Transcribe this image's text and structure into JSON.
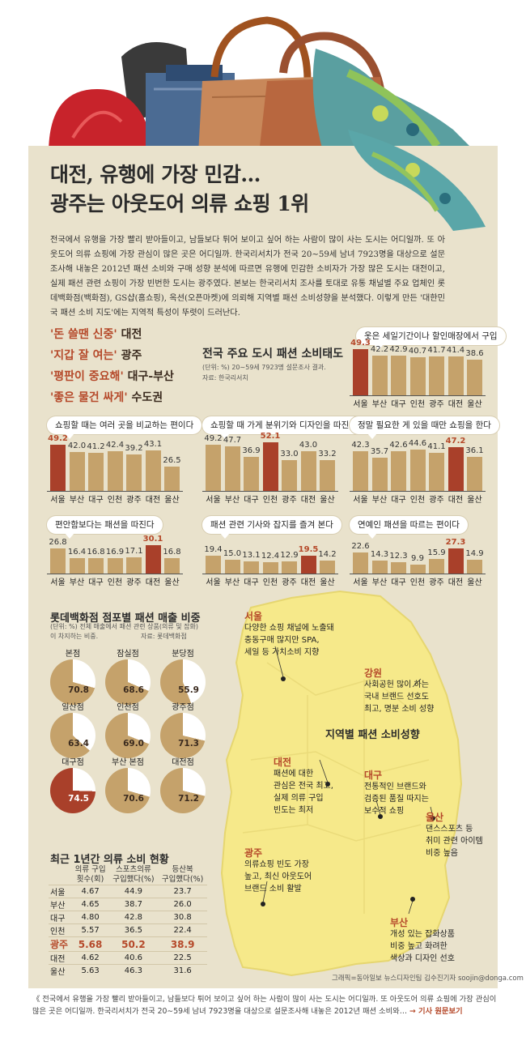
{
  "header": {
    "title1": "대전, 유행에 가장 민감…",
    "title2": "광주는 아웃도어 의류 쇼핑 1위"
  },
  "intro": "전국에서 유행을 가장 빨리 받아들이고, 남들보다 튀어 보이고 싶어 하는 사람이 많이 사는 도시는 어디일까. 또 아웃도어 의류 쇼핑에 가장 관심이 많은 곳은 어디일까. 한국리서치가 전국 20∼59세 남녀 7923명을 대상으로 설문조사해 내놓은 2012년 패션 소비와 구매 성향 분석에 따르면 유행에 민감한 소비자가 가장 많은 도시는 대전이고, 실제 패션 관련 쇼핑이 가장 빈번한 도시는 광주였다. 본보는 한국리서치 조사를 토대로 유통 채널별 주요 업체인 롯데백화점(백화점), GS샵(홈쇼핑), 옥션(오픈마켓)에 의뢰해 지역별 패션 소비성향을 분석했다. 이렇게 만든 '대한민국 패션 소비 지도'에는 지역적 특성이 뚜렷이 드러난다.",
  "keywords": [
    {
      "quote": "'돈 쓸땐 신중'",
      "city": "대전"
    },
    {
      "quote": "'지갑 잘 여는'",
      "city": "광주"
    },
    {
      "quote": "'평판이 중요해'",
      "city": "대구-부산"
    },
    {
      "quote": "'좋은 물건 싸게'",
      "city": "수도권"
    }
  ],
  "survey": {
    "title": "전국 주요 도시 패션 소비태도",
    "unit": "(단위: %)  20∼59세 7923명 설문조사 결과.",
    "source": "자료: 한국리서치"
  },
  "chart_data": [
    {
      "type": "bar",
      "title": "옷은 세일기간이나 할인매장에서 구입",
      "categories": [
        "서울",
        "부산",
        "대구",
        "인천",
        "광주",
        "대전",
        "울산"
      ],
      "values": [
        49.3,
        42.2,
        42.9,
        40.7,
        41.7,
        41.4,
        38.6
      ],
      "highlight": 0
    },
    {
      "type": "bar",
      "title": "쇼핑할 때는 여러 곳을 비교하는 편이다",
      "categories": [
        "서울",
        "부산",
        "대구",
        "인천",
        "광주",
        "대전",
        "울산"
      ],
      "values": [
        49.2,
        42.0,
        41.2,
        42.4,
        39.2,
        43.1,
        26.5
      ],
      "highlight": 0
    },
    {
      "type": "bar",
      "title": "쇼핑할 때 가게 분위기와 디자인을 따진다",
      "categories": [
        "서울",
        "부산",
        "대구",
        "인천",
        "광주",
        "대전",
        "울산"
      ],
      "values": [
        49.2,
        47.7,
        36.9,
        52.1,
        33.0,
        43.0,
        33.2
      ],
      "highlight": 3
    },
    {
      "type": "bar",
      "title": "정말 필요한 게 있을 때만 쇼핑을 한다",
      "categories": [
        "서울",
        "부산",
        "대구",
        "인천",
        "광주",
        "대전",
        "울산"
      ],
      "values": [
        42.3,
        35.7,
        42.6,
        44.6,
        41.1,
        47.2,
        36.1
      ],
      "highlight": 5
    },
    {
      "type": "bar",
      "title": "편안함보다는 패션을 따진다",
      "categories": [
        "서울",
        "부산",
        "대구",
        "인천",
        "광주",
        "대전",
        "울산"
      ],
      "values": [
        26.8,
        16.4,
        16.8,
        16.9,
        17.1,
        30.1,
        16.8
      ],
      "highlight": 5
    },
    {
      "type": "bar",
      "title": "패션 관련 기사와 잡지를 즐겨 본다",
      "categories": [
        "서울",
        "부산",
        "대구",
        "인천",
        "광주",
        "대전",
        "울산"
      ],
      "values": [
        19.4,
        15.0,
        13.1,
        12.4,
        12.9,
        19.5,
        14.2
      ],
      "highlight": 5
    },
    {
      "type": "bar",
      "title": "연예인 패션을 따르는 편이다",
      "categories": [
        "서울",
        "부산",
        "대구",
        "인천",
        "광주",
        "대전",
        "울산"
      ],
      "values": [
        22.6,
        14.3,
        12.3,
        9.9,
        15.9,
        27.3,
        14.9
      ],
      "highlight": 5
    },
    {
      "type": "pie",
      "title": "롯데백화점 점포별 패션 매출 비중",
      "categories": [
        "본점",
        "잠실점",
        "분당점",
        "일산점",
        "인천점",
        "광주점",
        "대구점",
        "부산 본점",
        "대전점"
      ],
      "values": [
        70.8,
        68.6,
        55.9,
        63.4,
        69.0,
        71.3,
        74.5,
        70.6,
        71.2
      ],
      "highlight": 6
    },
    {
      "type": "table",
      "title": "최근 1년간 의류 소비 현황",
      "columns": [
        "",
        "의류 구입 횟수(회)",
        "스포츠의류 구입했다(%)",
        "등산복 구입했다(%)"
      ],
      "rows": [
        [
          "서울",
          4.67,
          44.9,
          23.7
        ],
        [
          "부산",
          4.65,
          38.7,
          26.0
        ],
        [
          "대구",
          4.8,
          42.8,
          30.8
        ],
        [
          "인천",
          5.57,
          36.5,
          22.4
        ],
        [
          "광주",
          5.68,
          50.2,
          38.9
        ],
        [
          "대전",
          4.62,
          40.6,
          22.5
        ],
        [
          "울산",
          5.63,
          46.3,
          31.6
        ]
      ],
      "highlight": 4
    }
  ],
  "pies": {
    "unit": "(단위: %)  전체 매출에서 패션 관련 상품(의류 및 잡화)이 차지하는 비중.",
    "source": "자료: 롯데백화점",
    "labels": [
      "본점",
      "잠실점",
      "분당점",
      "일산점",
      "인천점",
      "광주점",
      "대구점",
      "부산 본점",
      "대전점"
    ],
    "values": [
      "70.8",
      "68.6",
      "55.9",
      "63.4",
      "69.0",
      "71.3",
      "74.5",
      "70.6",
      "71.2"
    ]
  },
  "table": {
    "h1": "의류 구입",
    "h1b": "횟수(회)",
    "h2": "스포츠의류",
    "h2b": "구입했다(%)",
    "h3": "등산복",
    "h3b": "구입했다(%)"
  },
  "map": {
    "title": "지역별 패션 소비성향",
    "regions": [
      {
        "name": "서울",
        "lines": [
          "다양한 쇼핑 채널에 노출돼",
          "충동구매 많지만 SPA,",
          "세일 등 가치소비 지향"
        ]
      },
      {
        "name": "강원",
        "lines": [
          "사회공헌 많이 하는",
          "국내 브랜드 선호도",
          "최고, 명분 소비 성향"
        ]
      },
      {
        "name": "대전",
        "lines": [
          "패션에 대한",
          "관심은 전국 최고,",
          "실제 의류 구입",
          "빈도는 최저"
        ]
      },
      {
        "name": "대구",
        "lines": [
          "전통적인 브랜드와",
          "검증된 품질 따지는",
          "보수적 쇼핑"
        ]
      },
      {
        "name": "울산",
        "lines": [
          "댄스스포츠 등",
          "취미 관련 아이템",
          "비중 높음"
        ]
      },
      {
        "name": "광주",
        "lines": [
          "의류쇼핑 빈도 가장",
          "높고, 최신 아웃도어",
          "브랜드 소비 활발"
        ]
      },
      {
        "name": "부산",
        "lines": [
          "개성 있는 잡화상품",
          "비중 높고 화려한",
          "색상과 디자인 선호"
        ]
      }
    ]
  },
  "credit": "그래픽=동아일보 뉴스디자인팀 김수진기자 soojin@donga.com",
  "footer": {
    "text": "《 전국에서 유행을 가장 빨리 받아들이고, 남들보다 튀어 보이고 싶어 하는 사람이 많이 사는 도시는 어디일까. 또 아웃도어 의류 쇼핑에 가장 관심이 많은 곳은 어디일까. 한국리서치가 전국 20∼59세 남녀 7923명을 대상으로 설문조사해 내놓은 2012년 패션 소비와…",
    "link": "→ 기사 원문보기"
  },
  "colors": {
    "bar": "#c5a26b",
    "highlight": "#a9402a",
    "paper": "#e9e2cc",
    "map": "#f6e98a"
  }
}
